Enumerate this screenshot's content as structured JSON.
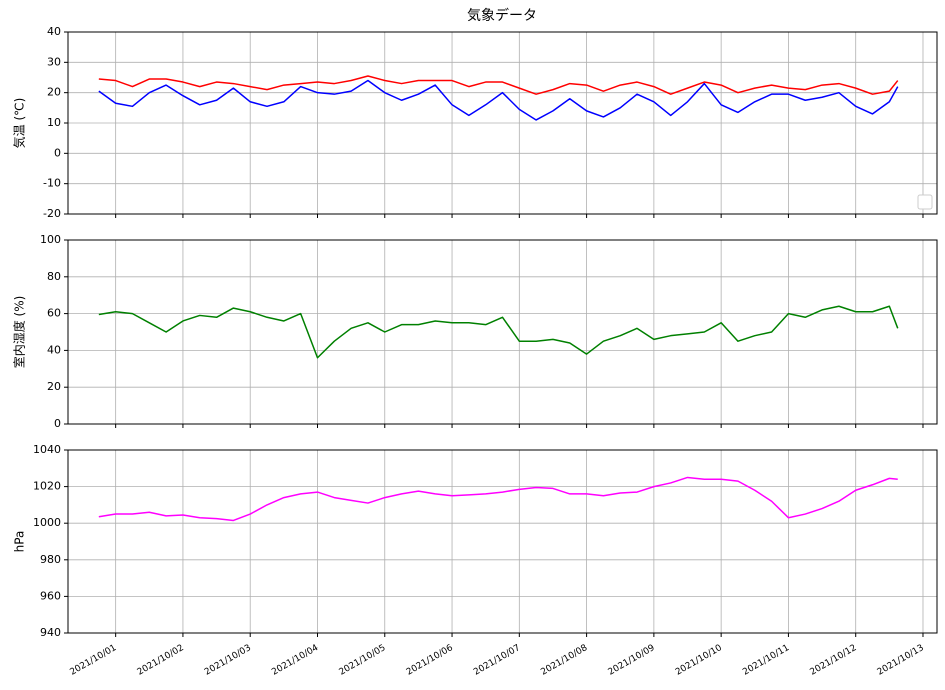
{
  "chart_data": [
    {
      "type": "line",
      "title": "気象データ",
      "ylabel": "気温 (℃)",
      "x": [
        "2021-09-30T18:00",
        "2021-10-01T00:00",
        "2021-10-01T06:00",
        "2021-10-01T12:00",
        "2021-10-01T18:00",
        "2021-10-02T00:00",
        "2021-10-02T06:00",
        "2021-10-02T12:00",
        "2021-10-02T18:00",
        "2021-10-03T00:00",
        "2021-10-03T06:00",
        "2021-10-03T12:00",
        "2021-10-03T18:00",
        "2021-10-04T00:00",
        "2021-10-04T06:00",
        "2021-10-04T12:00",
        "2021-10-04T18:00",
        "2021-10-05T00:00",
        "2021-10-05T06:00",
        "2021-10-05T12:00",
        "2021-10-05T18:00",
        "2021-10-06T00:00",
        "2021-10-06T06:00",
        "2021-10-06T12:00",
        "2021-10-06T18:00",
        "2021-10-07T00:00",
        "2021-10-07T06:00",
        "2021-10-07T12:00",
        "2021-10-07T18:00",
        "2021-10-08T00:00",
        "2021-10-08T06:00",
        "2021-10-08T12:00",
        "2021-10-08T18:00",
        "2021-10-09T00:00",
        "2021-10-09T06:00",
        "2021-10-09T12:00",
        "2021-10-09T18:00",
        "2021-10-10T00:00",
        "2021-10-10T06:00",
        "2021-10-10T12:00",
        "2021-10-10T18:00",
        "2021-10-11T00:00",
        "2021-10-11T06:00",
        "2021-10-11T12:00",
        "2021-10-11T18:00",
        "2021-10-12T00:00",
        "2021-10-12T06:00",
        "2021-10-12T12:00",
        "2021-10-12T15:00"
      ],
      "series": [
        {
          "color": "#ff0000",
          "values": [
            24.5,
            24,
            22,
            24.5,
            24.5,
            23.5,
            22,
            23.5,
            23,
            22,
            21,
            22.5,
            23,
            23.5,
            23,
            24,
            25.5,
            24,
            23,
            24,
            24,
            24,
            22,
            23.5,
            23.5,
            21.5,
            19.5,
            21,
            23,
            22.5,
            20.5,
            22.5,
            23.5,
            22,
            19.5,
            21.5,
            23.5,
            22.5,
            20,
            21.5,
            22.5,
            21.5,
            21,
            22.5,
            23,
            21.5,
            19.5,
            20.5,
            24
          ]
        },
        {
          "color": "#0000ff",
          "values": [
            20.5,
            16.5,
            15.5,
            20,
            22.5,
            19,
            16,
            17.5,
            21.5,
            17,
            15.5,
            17,
            22,
            20,
            19.5,
            20.5,
            24,
            20,
            17.5,
            19.5,
            22.5,
            16,
            12.5,
            16,
            20,
            14.5,
            11,
            14,
            18,
            14,
            12,
            15,
            19.5,
            17,
            12.5,
            17,
            23,
            16,
            13.5,
            17,
            19.5,
            19.5,
            17.5,
            18.5,
            20,
            15.5,
            13,
            17,
            22
          ]
        }
      ],
      "ylim": [
        -20,
        40
      ],
      "yticks": [
        -20,
        -10,
        0,
        10,
        20,
        30,
        40
      ],
      "grid": true,
      "legend": "lower right",
      "sharex": true
    },
    {
      "type": "line",
      "ylabel": "室内湿度 (%)",
      "x": [
        "2021-09-30T18:00",
        "2021-10-01T00:00",
        "2021-10-01T06:00",
        "2021-10-01T12:00",
        "2021-10-01T18:00",
        "2021-10-02T00:00",
        "2021-10-02T06:00",
        "2021-10-02T12:00",
        "2021-10-02T18:00",
        "2021-10-03T00:00",
        "2021-10-03T06:00",
        "2021-10-03T12:00",
        "2021-10-03T18:00",
        "2021-10-04T00:00",
        "2021-10-04T06:00",
        "2021-10-04T12:00",
        "2021-10-04T18:00",
        "2021-10-05T00:00",
        "2021-10-05T06:00",
        "2021-10-05T12:00",
        "2021-10-05T18:00",
        "2021-10-06T00:00",
        "2021-10-06T06:00",
        "2021-10-06T12:00",
        "2021-10-06T18:00",
        "2021-10-07T00:00",
        "2021-10-07T06:00",
        "2021-10-07T12:00",
        "2021-10-07T18:00",
        "2021-10-08T00:00",
        "2021-10-08T06:00",
        "2021-10-08T12:00",
        "2021-10-08T18:00",
        "2021-10-09T00:00",
        "2021-10-09T06:00",
        "2021-10-09T12:00",
        "2021-10-09T18:00",
        "2021-10-10T00:00",
        "2021-10-10T06:00",
        "2021-10-10T12:00",
        "2021-10-10T18:00",
        "2021-10-11T00:00",
        "2021-10-11T06:00",
        "2021-10-11T12:00",
        "2021-10-11T18:00",
        "2021-10-12T00:00",
        "2021-10-12T06:00",
        "2021-10-12T12:00",
        "2021-10-12T15:00"
      ],
      "series": [
        {
          "color": "#008000",
          "values": [
            59.5,
            61,
            60,
            55,
            50,
            56,
            59,
            58,
            63,
            61,
            58,
            56,
            60,
            36,
            45,
            52,
            55,
            50,
            54,
            54,
            56,
            55,
            55,
            54,
            58,
            45,
            45,
            46,
            44,
            38,
            45,
            48,
            52,
            46,
            48,
            49,
            50,
            55,
            45,
            48,
            50,
            60,
            58,
            62,
            64,
            61,
            61,
            64,
            52
          ]
        }
      ],
      "ylim": [
        0,
        100
      ],
      "yticks": [
        0,
        20,
        40,
        60,
        80,
        100
      ],
      "grid": true,
      "sharex": true
    },
    {
      "type": "line",
      "ylabel": "hPa",
      "x": [
        "2021-09-30T18:00",
        "2021-10-01T00:00",
        "2021-10-01T06:00",
        "2021-10-01T12:00",
        "2021-10-01T18:00",
        "2021-10-02T00:00",
        "2021-10-02T06:00",
        "2021-10-02T12:00",
        "2021-10-02T18:00",
        "2021-10-03T00:00",
        "2021-10-03T06:00",
        "2021-10-03T12:00",
        "2021-10-03T18:00",
        "2021-10-04T00:00",
        "2021-10-04T06:00",
        "2021-10-04T12:00",
        "2021-10-04T18:00",
        "2021-10-05T00:00",
        "2021-10-05T06:00",
        "2021-10-05T12:00",
        "2021-10-05T18:00",
        "2021-10-06T00:00",
        "2021-10-06T06:00",
        "2021-10-06T12:00",
        "2021-10-06T18:00",
        "2021-10-07T00:00",
        "2021-10-07T06:00",
        "2021-10-07T12:00",
        "2021-10-07T18:00",
        "2021-10-08T00:00",
        "2021-10-08T06:00",
        "2021-10-08T12:00",
        "2021-10-08T18:00",
        "2021-10-09T00:00",
        "2021-10-09T06:00",
        "2021-10-09T12:00",
        "2021-10-09T18:00",
        "2021-10-10T00:00",
        "2021-10-10T06:00",
        "2021-10-10T12:00",
        "2021-10-10T18:00",
        "2021-10-11T00:00",
        "2021-10-11T06:00",
        "2021-10-11T12:00",
        "2021-10-11T18:00",
        "2021-10-12T00:00",
        "2021-10-12T06:00",
        "2021-10-12T12:00",
        "2021-10-12T15:00"
      ],
      "series": [
        {
          "color": "#ff00ff",
          "values": [
            1003.5,
            1005,
            1005,
            1006,
            1004,
            1004.5,
            1003,
            1002.5,
            1001.5,
            1005,
            1010,
            1014,
            1016,
            1017,
            1014,
            1012.5,
            1011,
            1014,
            1016,
            1017.5,
            1016,
            1015,
            1015.5,
            1016,
            1017,
            1018.5,
            1019.5,
            1019,
            1016,
            1016,
            1015,
            1016.5,
            1017,
            1020,
            1022,
            1025,
            1024,
            1024,
            1023,
            1018,
            1012,
            1003,
            1005,
            1008,
            1012,
            1018,
            1021,
            1024.5,
            1024
          ]
        }
      ],
      "ylim": [
        940,
        1040
      ],
      "yticks": [
        940,
        960,
        980,
        1000,
        1020,
        1040
      ],
      "grid": true,
      "xlim": [
        "2021-09-30T07:00",
        "2021-10-13T05:00"
      ],
      "xticks": [
        {
          "value": "2021-10-01T00:00",
          "label": "2021/10/01"
        },
        {
          "value": "2021-10-02T00:00",
          "label": "2021/10/02"
        },
        {
          "value": "2021-10-03T00:00",
          "label": "2021/10/03"
        },
        {
          "value": "2021-10-04T00:00",
          "label": "2021/10/04"
        },
        {
          "value": "2021-10-05T00:00",
          "label": "2021/10/05"
        },
        {
          "value": "2021-10-06T00:00",
          "label": "2021/10/06"
        },
        {
          "value": "2021-10-07T00:00",
          "label": "2021/10/07"
        },
        {
          "value": "2021-10-08T00:00",
          "label": "2021/10/08"
        },
        {
          "value": "2021-10-09T00:00",
          "label": "2021/10/09"
        },
        {
          "value": "2021-10-10T00:00",
          "label": "2021/10/10"
        },
        {
          "value": "2021-10-11T00:00",
          "label": "2021/10/11"
        },
        {
          "value": "2021-10-12T00:00",
          "label": "2021/10/12"
        },
        {
          "value": "2021-10-13T00:00",
          "label": "2021/10/13"
        }
      ]
    }
  ]
}
